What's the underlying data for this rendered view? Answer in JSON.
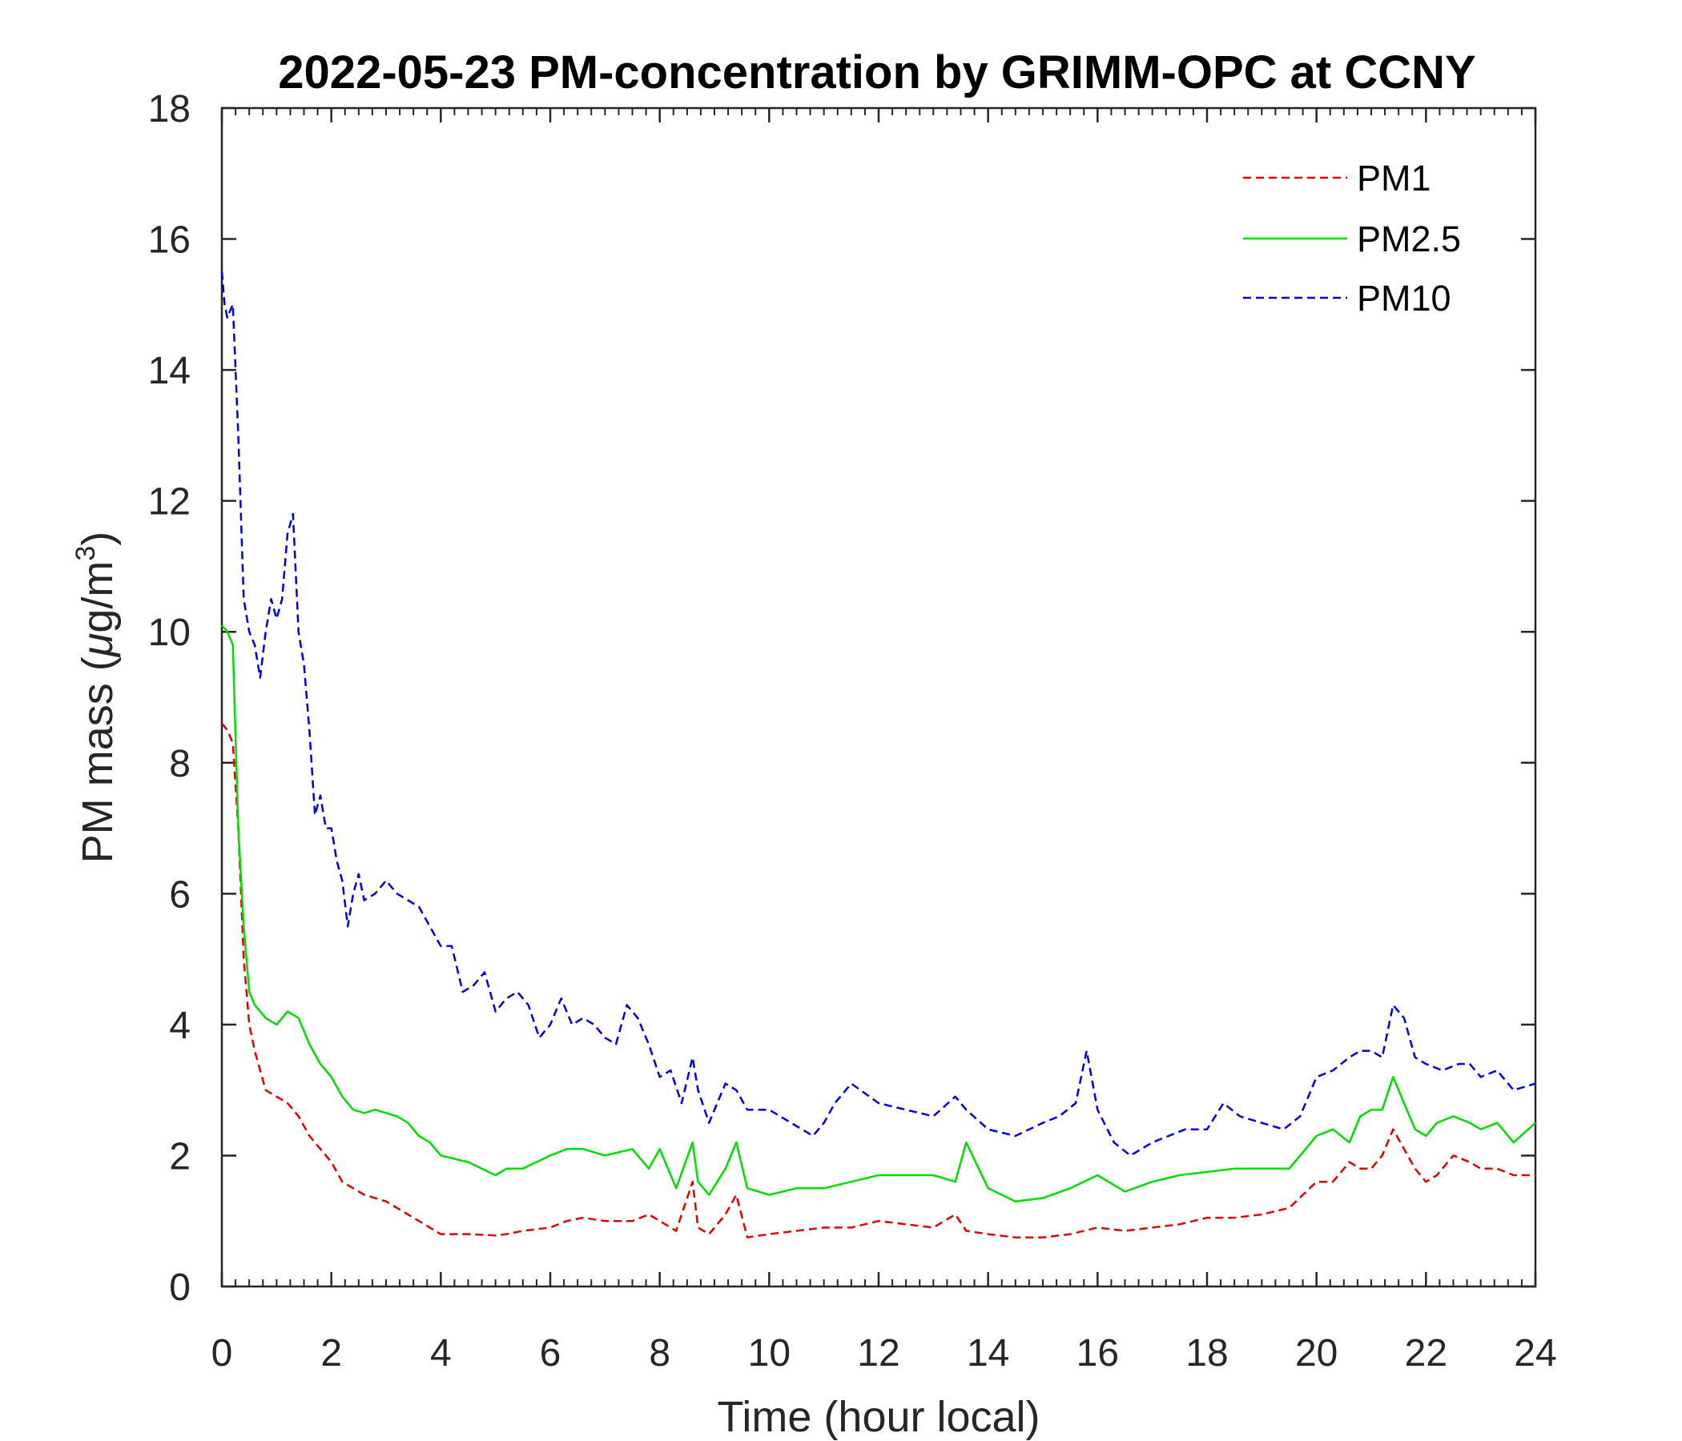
{
  "chart_data": {
    "type": "line",
    "title": "2022-05-23 PM-concentration by GRIMM-OPC at CCNY",
    "xlabel": "Time (hour local)",
    "ylabel_prefix": "PM mass (",
    "ylabel_mu": "μ",
    "ylabel_unit": "g/m",
    "ylabel_sup": "3",
    "ylabel_suffix": ")",
    "xlim": [
      0,
      24
    ],
    "ylim": [
      0,
      18
    ],
    "xticks": [
      0,
      2,
      4,
      6,
      8,
      10,
      12,
      14,
      16,
      18,
      20,
      22,
      24
    ],
    "yticks": [
      0,
      2,
      4,
      6,
      8,
      10,
      12,
      14,
      16,
      18
    ],
    "grid": false,
    "legend_position": "top-right",
    "series": [
      {
        "name": "PM1",
        "color": "#e00000",
        "style": "dashed",
        "x": [
          0,
          0.1,
          0.2,
          0.3,
          0.4,
          0.5,
          0.6,
          0.8,
          1.0,
          1.2,
          1.4,
          1.6,
          1.8,
          2.0,
          2.2,
          2.4,
          2.6,
          2.8,
          3.0,
          3.2,
          3.4,
          3.6,
          3.8,
          4.0,
          4.5,
          5.0,
          5.2,
          5.5,
          6.0,
          6.3,
          6.6,
          7.0,
          7.5,
          7.8,
          8.0,
          8.3,
          8.6,
          8.7,
          8.9,
          9.2,
          9.4,
          9.6,
          10.0,
          10.5,
          11.0,
          11.5,
          12.0,
          12.5,
          13.0,
          13.4,
          13.6,
          14.0,
          14.5,
          15.0,
          15.5,
          16.0,
          16.5,
          17.0,
          17.5,
          18.0,
          18.5,
          19.0,
          19.5,
          20.0,
          20.3,
          20.6,
          20.8,
          21.0,
          21.2,
          21.4,
          21.6,
          21.8,
          22.0,
          22.2,
          22.5,
          22.8,
          23.0,
          23.3,
          23.6,
          24.0
        ],
        "y": [
          8.6,
          8.5,
          8.3,
          7.0,
          5.0,
          4.0,
          3.6,
          3.0,
          2.9,
          2.8,
          2.6,
          2.3,
          2.1,
          1.9,
          1.6,
          1.5,
          1.4,
          1.35,
          1.3,
          1.2,
          1.1,
          1.0,
          0.9,
          0.8,
          0.8,
          0.78,
          0.8,
          0.85,
          0.9,
          1.0,
          1.05,
          1.0,
          1.0,
          1.1,
          1.0,
          0.85,
          1.6,
          0.9,
          0.8,
          1.1,
          1.4,
          0.75,
          0.8,
          0.85,
          0.9,
          0.9,
          1.0,
          0.95,
          0.9,
          1.1,
          0.85,
          0.8,
          0.75,
          0.75,
          0.8,
          0.9,
          0.85,
          0.9,
          0.95,
          1.05,
          1.05,
          1.1,
          1.2,
          1.6,
          1.6,
          1.9,
          1.8,
          1.8,
          2.0,
          2.4,
          2.1,
          1.8,
          1.6,
          1.7,
          2.0,
          1.9,
          1.8,
          1.8,
          1.7,
          1.7
        ]
      },
      {
        "name": "PM2.5",
        "color": "#00dd00",
        "style": "solid",
        "x": [
          0,
          0.1,
          0.2,
          0.3,
          0.4,
          0.5,
          0.6,
          0.8,
          1.0,
          1.2,
          1.4,
          1.6,
          1.8,
          2.0,
          2.2,
          2.4,
          2.6,
          2.8,
          3.0,
          3.2,
          3.4,
          3.6,
          3.8,
          4.0,
          4.5,
          5.0,
          5.2,
          5.5,
          6.0,
          6.3,
          6.6,
          7.0,
          7.5,
          7.8,
          8.0,
          8.3,
          8.6,
          8.7,
          8.9,
          9.2,
          9.4,
          9.6,
          10.0,
          10.5,
          11.0,
          11.5,
          12.0,
          12.5,
          13.0,
          13.4,
          13.6,
          14.0,
          14.5,
          15.0,
          15.5,
          16.0,
          16.5,
          17.0,
          17.5,
          18.0,
          18.5,
          19.0,
          19.5,
          20.0,
          20.3,
          20.6,
          20.8,
          21.0,
          21.2,
          21.4,
          21.6,
          21.8,
          22.0,
          22.2,
          22.5,
          22.8,
          23.0,
          23.3,
          23.6,
          24.0
        ],
        "y": [
          10.1,
          10.0,
          9.8,
          7.0,
          5.5,
          4.5,
          4.3,
          4.1,
          4.0,
          4.2,
          4.1,
          3.7,
          3.4,
          3.2,
          2.9,
          2.7,
          2.65,
          2.7,
          2.65,
          2.6,
          2.5,
          2.3,
          2.2,
          2.0,
          1.9,
          1.7,
          1.8,
          1.8,
          2.0,
          2.1,
          2.1,
          2.0,
          2.1,
          1.8,
          2.1,
          1.5,
          2.2,
          1.6,
          1.4,
          1.8,
          2.2,
          1.5,
          1.4,
          1.5,
          1.5,
          1.6,
          1.7,
          1.7,
          1.7,
          1.6,
          2.2,
          1.5,
          1.3,
          1.35,
          1.5,
          1.7,
          1.45,
          1.6,
          1.7,
          1.75,
          1.8,
          1.8,
          1.8,
          2.3,
          2.4,
          2.2,
          2.6,
          2.7,
          2.7,
          3.2,
          2.8,
          2.4,
          2.3,
          2.5,
          2.6,
          2.5,
          2.4,
          2.5,
          2.2,
          2.5
        ]
      },
      {
        "name": "PM10",
        "color": "#0000dd",
        "style": "dashed",
        "x": [
          0,
          0.05,
          0.1,
          0.2,
          0.3,
          0.4,
          0.5,
          0.6,
          0.7,
          0.8,
          0.9,
          1.0,
          1.1,
          1.2,
          1.3,
          1.4,
          1.5,
          1.6,
          1.7,
          1.8,
          1.9,
          2.0,
          2.1,
          2.2,
          2.3,
          2.4,
          2.5,
          2.6,
          2.8,
          3.0,
          3.2,
          3.4,
          3.6,
          3.8,
          4.0,
          4.2,
          4.4,
          4.6,
          4.8,
          5.0,
          5.2,
          5.4,
          5.6,
          5.8,
          6.0,
          6.2,
          6.4,
          6.6,
          6.8,
          7.0,
          7.2,
          7.4,
          7.6,
          7.8,
          8.0,
          8.2,
          8.4,
          8.6,
          8.7,
          8.9,
          9.2,
          9.4,
          9.6,
          10.0,
          10.4,
          10.8,
          11.0,
          11.2,
          11.5,
          12.0,
          12.5,
          13.0,
          13.4,
          13.6,
          14.0,
          14.5,
          15.0,
          15.3,
          15.6,
          15.8,
          16.0,
          16.3,
          16.6,
          16.8,
          17.0,
          17.3,
          17.6,
          18.0,
          18.3,
          18.6,
          19.0,
          19.4,
          19.7,
          20.0,
          20.3,
          20.6,
          20.8,
          21.0,
          21.2,
          21.4,
          21.6,
          21.8,
          22.0,
          22.3,
          22.6,
          22.8,
          23.0,
          23.3,
          23.6,
          24.0
        ],
        "y": [
          15.5,
          15.0,
          14.8,
          15.0,
          13.0,
          10.5,
          10.0,
          9.8,
          9.3,
          10.0,
          10.5,
          10.2,
          10.5,
          11.5,
          11.8,
          10.0,
          9.5,
          8.5,
          7.2,
          7.5,
          7.0,
          7.0,
          6.5,
          6.2,
          5.5,
          6.0,
          6.3,
          5.9,
          6.0,
          6.2,
          6.0,
          5.9,
          5.8,
          5.5,
          5.2,
          5.2,
          4.5,
          4.6,
          4.8,
          4.2,
          4.4,
          4.5,
          4.3,
          3.8,
          4.0,
          4.4,
          4.0,
          4.1,
          4.0,
          3.8,
          3.7,
          4.3,
          4.1,
          3.7,
          3.2,
          3.3,
          2.8,
          3.5,
          3.0,
          2.5,
          3.1,
          3.0,
          2.7,
          2.7,
          2.5,
          2.3,
          2.5,
          2.8,
          3.1,
          2.8,
          2.7,
          2.6,
          2.9,
          2.7,
          2.4,
          2.3,
          2.5,
          2.6,
          2.8,
          3.6,
          2.7,
          2.2,
          2.0,
          2.1,
          2.2,
          2.3,
          2.4,
          2.4,
          2.8,
          2.6,
          2.5,
          2.4,
          2.6,
          3.2,
          3.3,
          3.5,
          3.6,
          3.6,
          3.5,
          4.3,
          4.1,
          3.5,
          3.4,
          3.3,
          3.4,
          3.4,
          3.2,
          3.3,
          3.0,
          3.1
        ]
      }
    ]
  }
}
